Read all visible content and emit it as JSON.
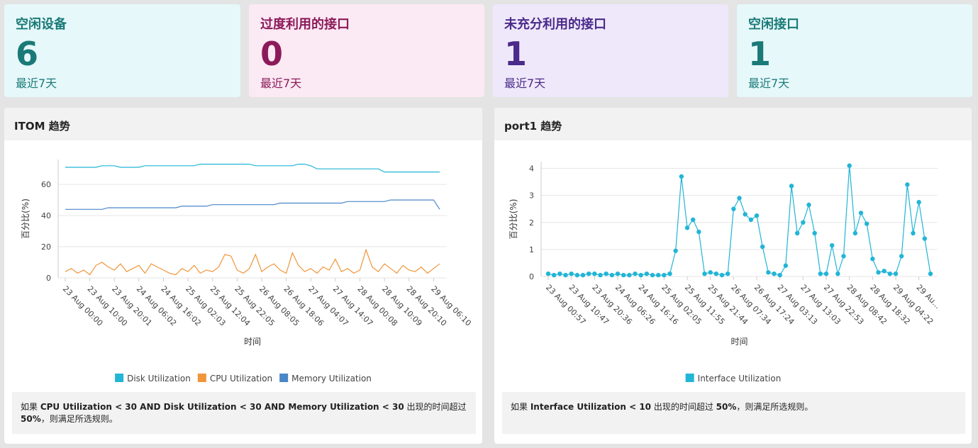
{
  "cards": [
    {
      "title": "空闲设备",
      "value": 6,
      "subtitle": "最近7天"
    },
    {
      "title": "过度利用的接口",
      "value": 0,
      "subtitle": "最近7天"
    },
    {
      "title": "未充分利用的接口",
      "value": 1,
      "subtitle": "最近7天"
    },
    {
      "title": "空闲接口",
      "value": 1,
      "subtitle": "最近7天"
    }
  ],
  "panels": [
    {
      "title": "ITOM 趋势",
      "chart_data": {
        "type": "line",
        "markers": false,
        "ylabel": "百分比(%)",
        "xlabel": "时间",
        "ylim": [
          0,
          76
        ],
        "yticks": [
          0,
          20,
          40,
          60
        ],
        "grid": true,
        "categories": [
          "23 Aug 00:00",
          null,
          null,
          null,
          "23 Aug 10:00",
          null,
          null,
          null,
          "23 Aug 20:01",
          null,
          null,
          null,
          "24 Aug 06:02",
          null,
          null,
          null,
          "24 Aug 16:02",
          null,
          null,
          null,
          "25 Aug 02:03",
          null,
          null,
          null,
          "25 Aug 12:04",
          null,
          null,
          null,
          "25 Aug 22:05",
          null,
          null,
          null,
          "26 Aug 08:05",
          null,
          null,
          null,
          "26 Aug 18:06",
          null,
          null,
          null,
          "27 Aug 04:07",
          null,
          null,
          null,
          "27 Aug 14:07",
          null,
          null,
          null,
          "28 Aug 00:08",
          null,
          null,
          null,
          "28 Aug 10:09",
          null,
          null,
          null,
          "28 Aug 20:10",
          null,
          null,
          null,
          "29 Aug 06:10",
          null
        ],
        "series": [
          {
            "name": "Disk Utilization",
            "color": "#21b5d6",
            "values": [
              71,
              71,
              71,
              71,
              71,
              71,
              72,
              72,
              72,
              71,
              71,
              71,
              71,
              72,
              72,
              72,
              72,
              72,
              72,
              72,
              72,
              72,
              73,
              73,
              73,
              73,
              73,
              73,
              73,
              73,
              73,
              72,
              72,
              72,
              72,
              72,
              72,
              72,
              73,
              73,
              72,
              70,
              70,
              70,
              70,
              70,
              70,
              70,
              70,
              70,
              70,
              70,
              68,
              68,
              68,
              68,
              68,
              68,
              68,
              68,
              68,
              68
            ]
          },
          {
            "name": "CPU Utilization",
            "color": "#f0953a",
            "values": [
              4,
              6,
              3,
              5,
              2,
              8,
              10,
              7,
              5,
              9,
              4,
              6,
              8,
              3,
              9,
              7,
              5,
              3,
              2,
              6,
              4,
              8,
              3,
              5,
              4,
              7,
              15,
              14,
              5,
              3,
              6,
              15,
              4,
              7,
              9,
              5,
              3,
              16,
              8,
              4,
              6,
              3,
              7,
              5,
              12,
              4,
              6,
              3,
              5,
              18,
              7,
              4,
              9,
              6,
              3,
              8,
              5,
              4,
              7,
              3,
              6,
              9
            ]
          },
          {
            "name": "Memory Utilization",
            "color": "#4a86c8",
            "values": [
              44,
              44,
              44,
              44,
              44,
              44,
              44,
              45,
              45,
              45,
              45,
              45,
              45,
              45,
              45,
              45,
              45,
              45,
              45,
              46,
              46,
              46,
              46,
              46,
              47,
              47,
              47,
              47,
              47,
              47,
              47,
              47,
              47,
              47,
              47,
              48,
              48,
              48,
              48,
              48,
              48,
              48,
              48,
              48,
              48,
              48,
              49,
              49,
              49,
              49,
              49,
              49,
              49,
              50,
              50,
              50,
              50,
              50,
              50,
              50,
              50,
              44
            ]
          }
        ]
      },
      "note": [
        "如果 ",
        "CPU Utilization < 30 AND Disk Utilization < 30 AND Memory Utilization < 30",
        " 出现的时间超过 ",
        "50%",
        "，则满足所选规则。"
      ]
    },
    {
      "title": "port1 趋势",
      "chart_data": {
        "type": "line",
        "markers": true,
        "ylabel": "百分比(%)",
        "xlabel": "时间",
        "ylim": [
          0,
          4.25
        ],
        "yticks": [
          0,
          1,
          2,
          3,
          4
        ],
        "grid": true,
        "categories": [
          "23 Aug 00:57",
          null,
          null,
          null,
          "23 Aug 10:47",
          null,
          null,
          null,
          "23 Aug 20:36",
          null,
          null,
          null,
          "24 Aug 06:26",
          null,
          null,
          null,
          "24 Aug 16:16",
          null,
          null,
          null,
          "25 Aug 02:05",
          null,
          null,
          null,
          "25 Aug 11:55",
          null,
          null,
          null,
          "25 Aug 21:44",
          null,
          null,
          null,
          "26 Aug 07:34",
          null,
          null,
          null,
          "26 Aug 17:24",
          null,
          null,
          null,
          "27 Aug 03:13",
          null,
          null,
          null,
          "27 Aug 13:03",
          null,
          null,
          null,
          "27 Aug 22:53",
          null,
          null,
          null,
          "28 Aug 08:42",
          null,
          null,
          null,
          "28 Aug 18:32",
          null,
          null,
          null,
          "29 Aug 04:22",
          null,
          null,
          null,
          "29 Au...",
          null,
          null
        ],
        "series": [
          {
            "name": "Interface Utilization",
            "color": "#21b5d6",
            "values": [
              0.1,
              0.05,
              0.1,
              0.05,
              0.1,
              0.05,
              0.05,
              0.1,
              0.1,
              0.05,
              0.1,
              0.05,
              0.1,
              0.05,
              0.05,
              0.1,
              0.05,
              0.1,
              0.05,
              0.05,
              0.05,
              0.1,
              0.95,
              3.7,
              1.8,
              2.1,
              1.65,
              0.1,
              0.15,
              0.1,
              0.05,
              0.1,
              2.5,
              2.9,
              2.3,
              2.1,
              2.25,
              1.1,
              0.15,
              0.1,
              0.05,
              0.4,
              3.35,
              1.6,
              2.0,
              2.65,
              1.6,
              0.1,
              0.1,
              1.15,
              0.1,
              0.75,
              4.1,
              1.6,
              2.35,
              1.95,
              0.65,
              0.15,
              0.2,
              0.1,
              0.1,
              0.75,
              3.4,
              1.6,
              2.75,
              1.4,
              0.1
            ]
          }
        ]
      },
      "note": [
        "如果 ",
        "Interface Utilization < 10",
        " 出现的时间超过 ",
        "50%",
        "，则满足所选规则。"
      ]
    }
  ]
}
